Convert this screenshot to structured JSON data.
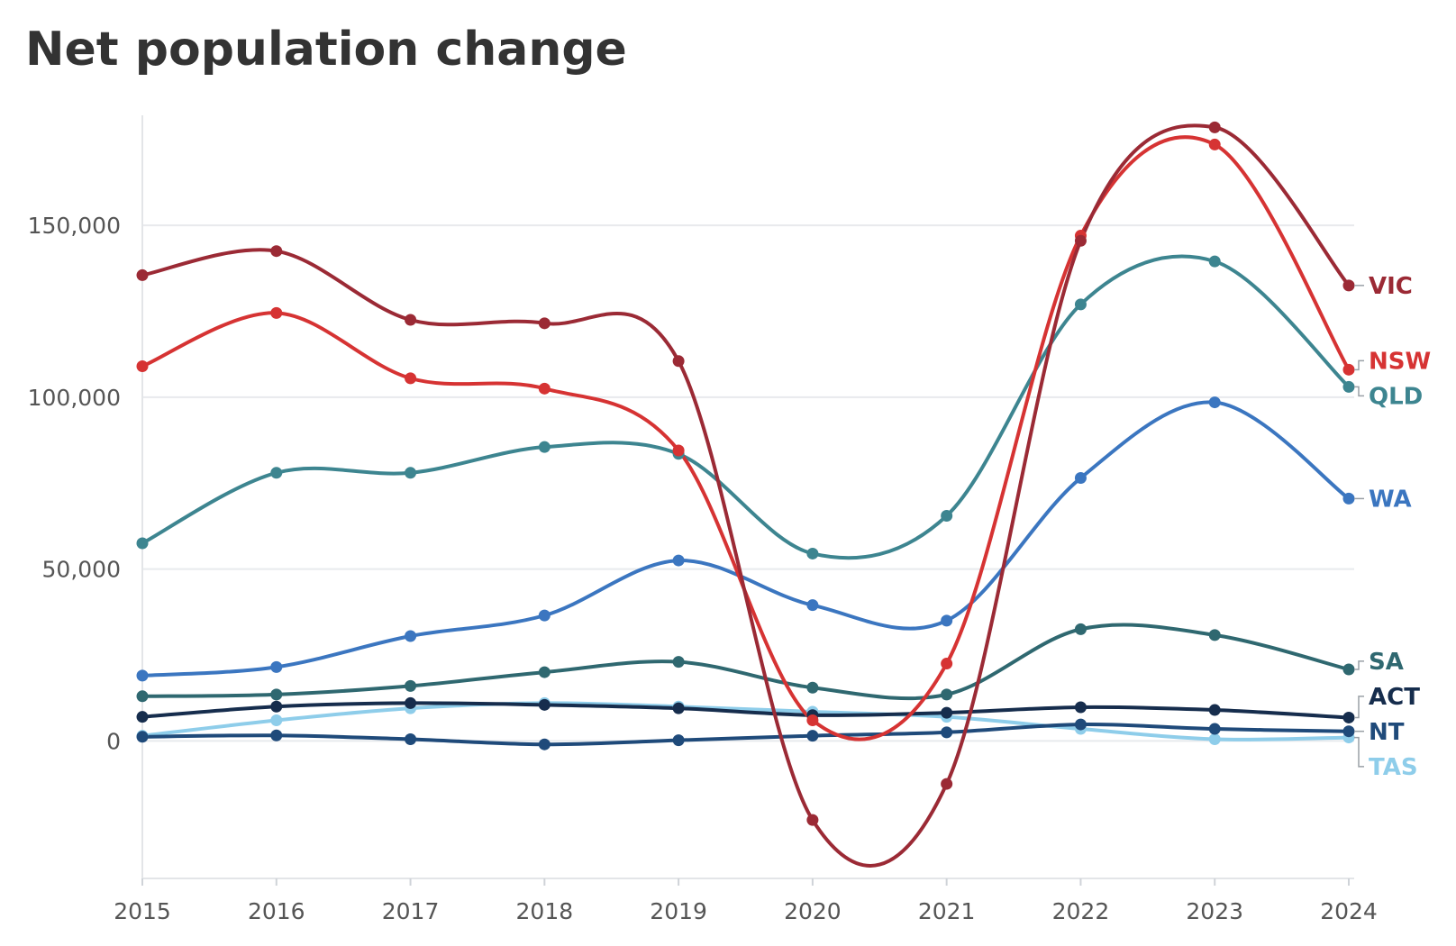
{
  "chart_data": {
    "type": "line",
    "title": "Net population change",
    "xlabel": "",
    "ylabel": "",
    "x": [
      "2015",
      "2016",
      "2017",
      "2018",
      "2019",
      "2020",
      "2021",
      "2022",
      "2023",
      "2024"
    ],
    "ylim": [
      -40000,
      182000
    ],
    "yticks": [
      0,
      50000,
      100000,
      150000
    ],
    "ytick_labels": [
      "0",
      "50,000",
      "100,000",
      "150,000"
    ],
    "grid": "horizontal",
    "legend": "labels at right end of lines",
    "series": [
      {
        "name": "TAS",
        "color": "#8ecdea",
        "values": [
          1500,
          6000,
          9500,
          11000,
          10000,
          8500,
          7000,
          3500,
          500,
          1000
        ]
      },
      {
        "name": "NT",
        "color": "#1f4a7a",
        "values": [
          1200,
          1600,
          500,
          -1000,
          200,
          1500,
          2500,
          4800,
          3500,
          2800
        ]
      },
      {
        "name": "ACT",
        "color": "#162d4d",
        "values": [
          7000,
          10000,
          11000,
          10500,
          9500,
          7500,
          8200,
          9800,
          9000,
          6800
        ]
      },
      {
        "name": "SA",
        "color": "#2f6870",
        "values": [
          13000,
          13500,
          16000,
          20000,
          23000,
          15500,
          13500,
          32500,
          30800,
          20800
        ]
      },
      {
        "name": "WA",
        "color": "#3b76c0",
        "values": [
          19000,
          21500,
          30500,
          36500,
          52500,
          39500,
          35000,
          76500,
          98500,
          70500
        ]
      },
      {
        "name": "QLD",
        "color": "#3d8590",
        "values": [
          57500,
          78000,
          78000,
          85500,
          83500,
          54500,
          65500,
          127000,
          139500,
          103000
        ]
      },
      {
        "name": "NSW",
        "color": "#d63333",
        "values": [
          109000,
          124500,
          105500,
          102500,
          84500,
          6000,
          22500,
          147000,
          173500,
          108000
        ]
      },
      {
        "name": "VIC",
        "color": "#9b2a35",
        "values": [
          135500,
          142500,
          122500,
          121500,
          110500,
          -23000,
          -12500,
          145500,
          178500,
          132500
        ]
      }
    ]
  }
}
